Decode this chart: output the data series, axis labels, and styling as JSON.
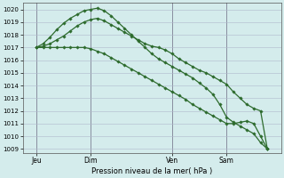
{
  "bg": "#d4ecec",
  "line_color": "#2d6b2d",
  "grid_color": "#b0b8cc",
  "xlabel_text": "Pression niveau de la mer( hPa )",
  "ylim": [
    1008.7,
    1020.5
  ],
  "yticks": [
    1009,
    1010,
    1011,
    1012,
    1013,
    1014,
    1015,
    1016,
    1017,
    1018,
    1019,
    1020
  ],
  "xtick_labels": [
    "Jeu",
    "Dim",
    "Ven",
    "Sam"
  ],
  "xtick_positions": [
    2,
    10,
    22,
    30
  ],
  "vlines_x": [
    2,
    10,
    22,
    30
  ],
  "xlim": [
    0,
    38
  ],
  "s1_x": [
    2,
    3,
    4,
    5,
    6,
    7,
    8,
    9,
    10,
    11,
    12,
    13,
    14,
    15,
    16,
    17,
    18,
    19,
    20,
    21,
    22,
    23,
    24,
    25,
    26,
    27,
    28,
    29,
    30,
    31,
    32,
    33,
    34,
    35,
    36
  ],
  "s1_y": [
    1017.0,
    1017.1,
    1017.3,
    1017.6,
    1017.9,
    1018.3,
    1018.7,
    1019.0,
    1019.2,
    1019.3,
    1019.1,
    1018.8,
    1018.5,
    1018.2,
    1017.9,
    1017.6,
    1017.3,
    1017.1,
    1017.0,
    1016.8,
    1016.5,
    1016.1,
    1015.8,
    1015.5,
    1015.2,
    1015.0,
    1014.7,
    1014.4,
    1014.1,
    1013.5,
    1013.0,
    1012.5,
    1012.2,
    1012.0,
    1009.0
  ],
  "s2_x": [
    2,
    3,
    4,
    5,
    6,
    7,
    8,
    9,
    10,
    11,
    12,
    13,
    14,
    15,
    16,
    17,
    18,
    19,
    20,
    21,
    22,
    23,
    24,
    25,
    26,
    27,
    28,
    29,
    30,
    31,
    32,
    33,
    34,
    35,
    36
  ],
  "s2_y": [
    1017.0,
    1017.3,
    1017.8,
    1018.4,
    1018.9,
    1019.3,
    1019.6,
    1019.9,
    1020.0,
    1020.1,
    1019.9,
    1019.5,
    1019.0,
    1018.5,
    1018.0,
    1017.5,
    1017.0,
    1016.5,
    1016.1,
    1015.8,
    1015.5,
    1015.2,
    1014.9,
    1014.6,
    1014.2,
    1013.8,
    1013.3,
    1012.5,
    1011.5,
    1011.1,
    1010.8,
    1010.5,
    1010.2,
    1009.5,
    1009.0
  ],
  "s3_x": [
    2,
    3,
    4,
    5,
    6,
    7,
    8,
    9,
    10,
    11,
    12,
    13,
    14,
    15,
    16,
    17,
    18,
    19,
    20,
    21,
    22,
    23,
    24,
    25,
    26,
    27,
    28,
    29,
    30,
    31,
    32,
    33,
    34,
    35,
    36
  ],
  "s3_y": [
    1017.0,
    1017.0,
    1017.0,
    1017.0,
    1017.0,
    1017.0,
    1017.0,
    1017.0,
    1016.9,
    1016.7,
    1016.5,
    1016.2,
    1015.9,
    1015.6,
    1015.3,
    1015.0,
    1014.7,
    1014.4,
    1014.1,
    1013.8,
    1013.5,
    1013.2,
    1012.9,
    1012.5,
    1012.2,
    1011.9,
    1011.6,
    1011.3,
    1011.0,
    1011.0,
    1011.1,
    1011.2,
    1011.0,
    1010.0,
    1009.0
  ]
}
